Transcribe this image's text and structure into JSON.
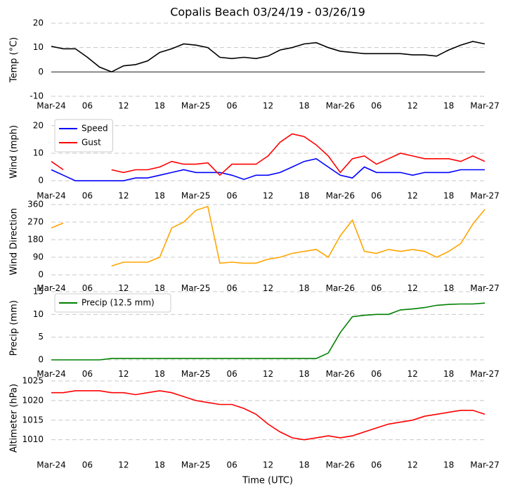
{
  "chart_data": [
    {
      "type": "line",
      "title": "Copalis Beach 03/24/19 - 03/26/19",
      "ylabel": "Temp (°C)",
      "x": [
        "2019-03-24T00:00",
        "2019-03-24T02:00",
        "2019-03-24T04:00",
        "2019-03-24T06:00",
        "2019-03-24T08:00",
        "2019-03-24T10:00",
        "2019-03-24T12:00",
        "2019-03-24T14:00",
        "2019-03-24T16:00",
        "2019-03-24T18:00",
        "2019-03-24T20:00",
        "2019-03-24T22:00",
        "2019-03-25T00:00",
        "2019-03-25T02:00",
        "2019-03-25T04:00",
        "2019-03-25T06:00",
        "2019-03-25T08:00",
        "2019-03-25T10:00",
        "2019-03-25T12:00",
        "2019-03-25T14:00",
        "2019-03-25T16:00",
        "2019-03-25T18:00",
        "2019-03-25T20:00",
        "2019-03-25T22:00",
        "2019-03-26T00:00",
        "2019-03-26T02:00",
        "2019-03-26T04:00",
        "2019-03-26T06:00",
        "2019-03-26T08:00",
        "2019-03-26T10:00",
        "2019-03-26T12:00",
        "2019-03-26T14:00",
        "2019-03-26T16:00",
        "2019-03-26T18:00",
        "2019-03-26T20:00",
        "2019-03-26T22:00",
        "2019-03-27T00:00"
      ],
      "series": [
        {
          "name": "Temp",
          "color": "#000000",
          "values": [
            10.5,
            9.5,
            9.5,
            6,
            2,
            0,
            2.5,
            3,
            4.5,
            8,
            9.5,
            11.5,
            11,
            10,
            6,
            5.5,
            6,
            5.5,
            6.5,
            9,
            10,
            11.5,
            12,
            10,
            8.5,
            8,
            7.5,
            7.5,
            7.5,
            7.5,
            7,
            7,
            6.5,
            9,
            11,
            12.5,
            11.5
          ]
        }
      ],
      "xlim": [
        "2019-03-24T00:00",
        "2019-03-27T00:00"
      ],
      "xticks": [
        {
          "value": "2019-03-24T00:00",
          "label": "Mar-24"
        },
        {
          "value": "2019-03-24T06:00",
          "label": "06"
        },
        {
          "value": "2019-03-24T12:00",
          "label": "12"
        },
        {
          "value": "2019-03-24T18:00",
          "label": "18"
        },
        {
          "value": "2019-03-25T00:00",
          "label": "Mar-25"
        },
        {
          "value": "2019-03-25T06:00",
          "label": "06"
        },
        {
          "value": "2019-03-25T12:00",
          "label": "12"
        },
        {
          "value": "2019-03-25T18:00",
          "label": "18"
        },
        {
          "value": "2019-03-26T00:00",
          "label": "Mar-26"
        },
        {
          "value": "2019-03-26T06:00",
          "label": "06"
        },
        {
          "value": "2019-03-26T12:00",
          "label": "12"
        },
        {
          "value": "2019-03-26T18:00",
          "label": "18"
        },
        {
          "value": "2019-03-27T00:00",
          "label": "Mar-27"
        }
      ],
      "ylim": [
        -10,
        20
      ],
      "yticks": [
        -10,
        0,
        10,
        20
      ],
      "hline": 0,
      "grid": true
    },
    {
      "type": "line",
      "ylabel": "Wind (mph)",
      "legend": "upper left",
      "x": [
        "2019-03-24T00:00",
        "2019-03-24T02:00",
        "2019-03-24T04:00",
        "2019-03-24T06:00",
        "2019-03-24T08:00",
        "2019-03-24T10:00",
        "2019-03-24T12:00",
        "2019-03-24T14:00",
        "2019-03-24T16:00",
        "2019-03-24T18:00",
        "2019-03-24T20:00",
        "2019-03-24T22:00",
        "2019-03-25T00:00",
        "2019-03-25T02:00",
        "2019-03-25T04:00",
        "2019-03-25T06:00",
        "2019-03-25T08:00",
        "2019-03-25T10:00",
        "2019-03-25T12:00",
        "2019-03-25T14:00",
        "2019-03-25T16:00",
        "2019-03-25T18:00",
        "2019-03-25T20:00",
        "2019-03-25T22:00",
        "2019-03-26T00:00",
        "2019-03-26T02:00",
        "2019-03-26T04:00",
        "2019-03-26T06:00",
        "2019-03-26T08:00",
        "2019-03-26T10:00",
        "2019-03-26T12:00",
        "2019-03-26T14:00",
        "2019-03-26T16:00",
        "2019-03-26T18:00",
        "2019-03-26T20:00",
        "2019-03-26T22:00",
        "2019-03-27T00:00"
      ],
      "series": [
        {
          "name": "Speed",
          "color": "#0000ff",
          "values": [
            4,
            2,
            0,
            0,
            0,
            0,
            0,
            1,
            1,
            2,
            3,
            4,
            3,
            3,
            3,
            2,
            0.5,
            2,
            2,
            3,
            5,
            7,
            8,
            5,
            2,
            1,
            5,
            3,
            3,
            3,
            2,
            3,
            3,
            3,
            4,
            4,
            4
          ]
        },
        {
          "name": "Gust",
          "color": "#ff0000",
          "values": [
            7,
            4,
            null,
            2,
            null,
            4,
            3,
            4,
            4,
            5,
            7,
            6,
            6,
            6.5,
            2,
            6,
            6,
            6,
            9,
            14,
            17,
            16,
            13,
            9,
            3,
            8,
            9,
            6,
            8,
            10,
            9,
            8,
            8,
            8,
            7,
            9,
            7
          ]
        }
      ],
      "xlim": [
        "2019-03-24T00:00",
        "2019-03-27T00:00"
      ],
      "xticks": [
        {
          "value": "2019-03-24T00:00",
          "label": "Mar-24"
        },
        {
          "value": "2019-03-24T06:00",
          "label": "06"
        },
        {
          "value": "2019-03-24T12:00",
          "label": "12"
        },
        {
          "value": "2019-03-24T18:00",
          "label": "18"
        },
        {
          "value": "2019-03-25T00:00",
          "label": "Mar-25"
        },
        {
          "value": "2019-03-25T06:00",
          "label": "06"
        },
        {
          "value": "2019-03-25T12:00",
          "label": "12"
        },
        {
          "value": "2019-03-25T18:00",
          "label": "18"
        },
        {
          "value": "2019-03-26T00:00",
          "label": "Mar-26"
        },
        {
          "value": "2019-03-26T06:00",
          "label": "06"
        },
        {
          "value": "2019-03-26T12:00",
          "label": "12"
        },
        {
          "value": "2019-03-26T18:00",
          "label": "18"
        },
        {
          "value": "2019-03-27T00:00",
          "label": "Mar-27"
        }
      ],
      "ylim": [
        -2,
        23
      ],
      "yticks": [
        0,
        10,
        20
      ],
      "grid": true
    },
    {
      "type": "line",
      "ylabel": "Wind Direction",
      "x": [
        "2019-03-24T00:00",
        "2019-03-24T02:00",
        "2019-03-24T04:00",
        "2019-03-24T06:00",
        "2019-03-24T08:00",
        "2019-03-24T10:00",
        "2019-03-24T12:00",
        "2019-03-24T14:00",
        "2019-03-24T16:00",
        "2019-03-24T18:00",
        "2019-03-24T20:00",
        "2019-03-24T22:00",
        "2019-03-25T00:00",
        "2019-03-25T02:00",
        "2019-03-25T04:00",
        "2019-03-25T06:00",
        "2019-03-25T08:00",
        "2019-03-25T10:00",
        "2019-03-25T12:00",
        "2019-03-25T14:00",
        "2019-03-25T16:00",
        "2019-03-25T18:00",
        "2019-03-25T20:00",
        "2019-03-25T22:00",
        "2019-03-26T00:00",
        "2019-03-26T02:00",
        "2019-03-26T04:00",
        "2019-03-26T06:00",
        "2019-03-26T08:00",
        "2019-03-26T10:00",
        "2019-03-26T12:00",
        "2019-03-26T14:00",
        "2019-03-26T16:00",
        "2019-03-26T18:00",
        "2019-03-26T20:00",
        "2019-03-26T22:00",
        "2019-03-27T00:00"
      ],
      "series": [
        {
          "name": "Wind Direction",
          "color": "#ffa500",
          "values": [
            240,
            265,
            null,
            null,
            null,
            45,
            65,
            65,
            65,
            90,
            240,
            270,
            330,
            350,
            60,
            65,
            60,
            60,
            80,
            90,
            110,
            120,
            130,
            90,
            200,
            280,
            120,
            110,
            130,
            120,
            130,
            120,
            90,
            120,
            160,
            260,
            335
          ]
        }
      ],
      "xlim": [
        "2019-03-24T00:00",
        "2019-03-27T00:00"
      ],
      "xticks": [
        {
          "value": "2019-03-24T00:00",
          "label": "Mar-24"
        },
        {
          "value": "2019-03-24T06:00",
          "label": "06"
        },
        {
          "value": "2019-03-24T12:00",
          "label": "12"
        },
        {
          "value": "2019-03-24T18:00",
          "label": "18"
        },
        {
          "value": "2019-03-25T00:00",
          "label": "Mar-25"
        },
        {
          "value": "2019-03-25T06:00",
          "label": "06"
        },
        {
          "value": "2019-03-25T12:00",
          "label": "12"
        },
        {
          "value": "2019-03-25T18:00",
          "label": "18"
        },
        {
          "value": "2019-03-26T00:00",
          "label": "Mar-26"
        },
        {
          "value": "2019-03-26T06:00",
          "label": "06"
        },
        {
          "value": "2019-03-26T12:00",
          "label": "12"
        },
        {
          "value": "2019-03-26T18:00",
          "label": "18"
        },
        {
          "value": "2019-03-27T00:00",
          "label": "Mar-27"
        }
      ],
      "ylim": [
        -20,
        360
      ],
      "yticks": [
        0,
        90,
        180,
        270,
        360
      ],
      "grid": true
    },
    {
      "type": "line",
      "ylabel": "Precip (mm)",
      "legend": "upper left",
      "x": [
        "2019-03-24T00:00",
        "2019-03-24T02:00",
        "2019-03-24T04:00",
        "2019-03-24T06:00",
        "2019-03-24T08:00",
        "2019-03-24T10:00",
        "2019-03-24T12:00",
        "2019-03-24T14:00",
        "2019-03-24T16:00",
        "2019-03-24T18:00",
        "2019-03-24T20:00",
        "2019-03-24T22:00",
        "2019-03-25T00:00",
        "2019-03-25T02:00",
        "2019-03-25T04:00",
        "2019-03-25T06:00",
        "2019-03-25T08:00",
        "2019-03-25T10:00",
        "2019-03-25T12:00",
        "2019-03-25T14:00",
        "2019-03-25T16:00",
        "2019-03-25T18:00",
        "2019-03-25T20:00",
        "2019-03-25T22:00",
        "2019-03-26T00:00",
        "2019-03-26T02:00",
        "2019-03-26T04:00",
        "2019-03-26T06:00",
        "2019-03-26T08:00",
        "2019-03-26T10:00",
        "2019-03-26T12:00",
        "2019-03-26T14:00",
        "2019-03-26T16:00",
        "2019-03-26T18:00",
        "2019-03-26T20:00",
        "2019-03-26T22:00",
        "2019-03-27T00:00"
      ],
      "series": [
        {
          "name": "Precip (12.5 mm)",
          "color": "#008000",
          "values": [
            0,
            0,
            0,
            0,
            0,
            0.3,
            0.3,
            0.3,
            0.3,
            0.3,
            0.3,
            0.3,
            0.3,
            0.3,
            0.3,
            0.3,
            0.3,
            0.3,
            0.3,
            0.3,
            0.3,
            0.3,
            0.3,
            1.5,
            6,
            9.5,
            9.8,
            10,
            10,
            11,
            11.2,
            11.5,
            12,
            12.2,
            12.3,
            12.3,
            12.5
          ]
        }
      ],
      "xlim": [
        "2019-03-24T00:00",
        "2019-03-27T00:00"
      ],
      "xticks": [
        {
          "value": "2019-03-24T00:00",
          "label": "Mar-24"
        },
        {
          "value": "2019-03-24T06:00",
          "label": "06"
        },
        {
          "value": "2019-03-24T12:00",
          "label": "12"
        },
        {
          "value": "2019-03-24T18:00",
          "label": "18"
        },
        {
          "value": "2019-03-25T00:00",
          "label": "Mar-25"
        },
        {
          "value": "2019-03-25T06:00",
          "label": "06"
        },
        {
          "value": "2019-03-25T12:00",
          "label": "12"
        },
        {
          "value": "2019-03-25T18:00",
          "label": "18"
        },
        {
          "value": "2019-03-26T00:00",
          "label": "Mar-26"
        },
        {
          "value": "2019-03-26T06:00",
          "label": "06"
        },
        {
          "value": "2019-03-26T12:00",
          "label": "12"
        },
        {
          "value": "2019-03-26T18:00",
          "label": "18"
        },
        {
          "value": "2019-03-27T00:00",
          "label": "Mar-27"
        }
      ],
      "ylim": [
        -1,
        15
      ],
      "yticks": [
        0,
        5,
        10,
        15
      ],
      "grid": true
    },
    {
      "type": "line",
      "ylabel": "Altimeter (hPa)",
      "xlabel": "Time (UTC)",
      "x": [
        "2019-03-24T00:00",
        "2019-03-24T02:00",
        "2019-03-24T04:00",
        "2019-03-24T06:00",
        "2019-03-24T08:00",
        "2019-03-24T10:00",
        "2019-03-24T12:00",
        "2019-03-24T14:00",
        "2019-03-24T16:00",
        "2019-03-24T18:00",
        "2019-03-24T20:00",
        "2019-03-24T22:00",
        "2019-03-25T00:00",
        "2019-03-25T02:00",
        "2019-03-25T04:00",
        "2019-03-25T06:00",
        "2019-03-25T08:00",
        "2019-03-25T10:00",
        "2019-03-25T12:00",
        "2019-03-25T14:00",
        "2019-03-25T16:00",
        "2019-03-25T18:00",
        "2019-03-25T20:00",
        "2019-03-25T22:00",
        "2019-03-26T00:00",
        "2019-03-26T02:00",
        "2019-03-26T04:00",
        "2019-03-26T06:00",
        "2019-03-26T08:00",
        "2019-03-26T10:00",
        "2019-03-26T12:00",
        "2019-03-26T14:00",
        "2019-03-26T16:00",
        "2019-03-26T18:00",
        "2019-03-26T20:00",
        "2019-03-26T22:00",
        "2019-03-27T00:00"
      ],
      "series": [
        {
          "name": "Altimeter",
          "color": "#ff0000",
          "values": [
            1022,
            1022,
            1022.5,
            1022.5,
            1022.5,
            1022,
            1022,
            1021.5,
            1022,
            1022.5,
            1022,
            1021,
            1020,
            1019.5,
            1019,
            1019,
            1018,
            1016.5,
            1014,
            1012,
            1010.5,
            1010,
            1010.5,
            1011,
            1010.5,
            1011,
            1012,
            1013,
            1014,
            1014.5,
            1015,
            1016,
            1016.5,
            1017,
            1017.5,
            1017.5,
            1016.5
          ]
        }
      ],
      "xlim": [
        "2019-03-24T00:00",
        "2019-03-27T00:00"
      ],
      "xticks": [
        {
          "value": "2019-03-24T00:00",
          "label": "Mar-24"
        },
        {
          "value": "2019-03-24T06:00",
          "label": "06"
        },
        {
          "value": "2019-03-24T12:00",
          "label": "12"
        },
        {
          "value": "2019-03-24T18:00",
          "label": "18"
        },
        {
          "value": "2019-03-25T00:00",
          "label": "Mar-25"
        },
        {
          "value": "2019-03-25T06:00",
          "label": "06"
        },
        {
          "value": "2019-03-25T12:00",
          "label": "12"
        },
        {
          "value": "2019-03-25T18:00",
          "label": "18"
        },
        {
          "value": "2019-03-26T00:00",
          "label": "Mar-26"
        },
        {
          "value": "2019-03-26T06:00",
          "label": "06"
        },
        {
          "value": "2019-03-26T12:00",
          "label": "12"
        },
        {
          "value": "2019-03-26T18:00",
          "label": "18"
        },
        {
          "value": "2019-03-27T00:00",
          "label": "Mar-27"
        }
      ],
      "ylim": [
        1006,
        1025
      ],
      "yticks": [
        1010,
        1015,
        1020,
        1025
      ],
      "grid": true
    }
  ]
}
